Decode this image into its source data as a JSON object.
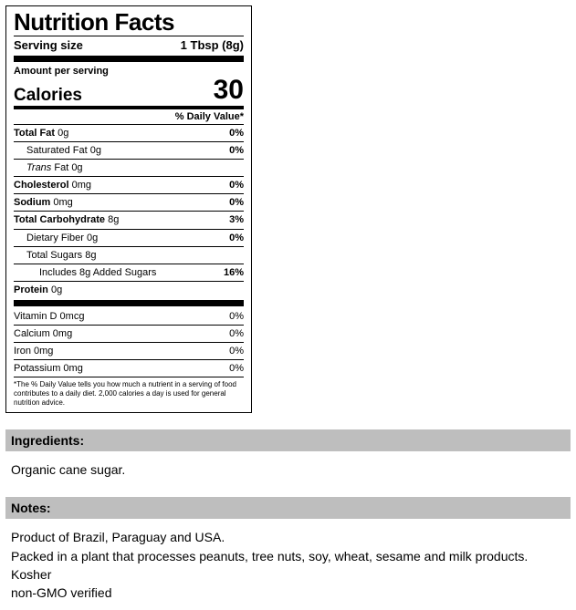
{
  "label": {
    "title": "Nutrition Facts",
    "serving_label": "Serving size",
    "serving_value": "1 Tbsp (8g)",
    "amount_label": "Amount per serving",
    "calories_label": "Calories",
    "calories_value": "30",
    "dv_header": "% Daily Value*",
    "nutrients_main": [
      {
        "name": "Total Fat",
        "amount": "0g",
        "dv": "0%",
        "bold": true,
        "indent": 0
      },
      {
        "name": "Saturated Fat",
        "amount": "0g",
        "dv": "0%",
        "bold": false,
        "indent": 1
      },
      {
        "name_prefix_italic": "Trans",
        "name_rest": " Fat",
        "amount": "0g",
        "dv": "",
        "bold": false,
        "indent": 1
      },
      {
        "name": "Cholesterol",
        "amount": "0mg",
        "dv": "0%",
        "bold": true,
        "indent": 0
      },
      {
        "name": "Sodium",
        "amount": "0mg",
        "dv": "0%",
        "bold": true,
        "indent": 0
      },
      {
        "name": "Total Carbohydrate",
        "amount": "8g",
        "dv": "3%",
        "bold": true,
        "indent": 0
      },
      {
        "name": "Dietary Fiber",
        "amount": "0g",
        "dv": "0%",
        "bold": false,
        "indent": 1
      },
      {
        "name": "Total Sugars",
        "amount": "8g",
        "dv": "",
        "bold": false,
        "indent": 1
      },
      {
        "name": "Includes 8g Added Sugars",
        "amount": "",
        "dv": "16%",
        "bold": false,
        "indent": 2
      },
      {
        "name": "Protein",
        "amount": "0g",
        "dv": "",
        "bold": true,
        "indent": 0,
        "noborder": true
      }
    ],
    "nutrients_vit": [
      {
        "name": "Vitamin D",
        "amount": "0mcg",
        "dv": "0%"
      },
      {
        "name": "Calcium",
        "amount": "0mg",
        "dv": "0%"
      },
      {
        "name": "Iron",
        "amount": "0mg",
        "dv": "0%"
      },
      {
        "name": "Potassium",
        "amount": "0mg",
        "dv": "0%"
      }
    ],
    "footnote": "*The % Daily Value tells you how much a nutrient in a serving of food contributes to a daily diet. 2,000 calories a day is used for general nutrition advice."
  },
  "sections": {
    "ingredients_header": "Ingredients:",
    "ingredients_body": "Organic cane sugar.",
    "notes_header": "Notes:",
    "notes_lines": [
      "Product of Brazil, Paraguay and USA.",
      "Packed in a plant that processes peanuts, tree nuts, soy, wheat, sesame  and milk products.",
      "Kosher",
      "non-GMO verified"
    ]
  },
  "colors": {
    "text": "#000000",
    "border": "#000000",
    "section_bg": "#bebebe",
    "page_bg": "#ffffff"
  }
}
